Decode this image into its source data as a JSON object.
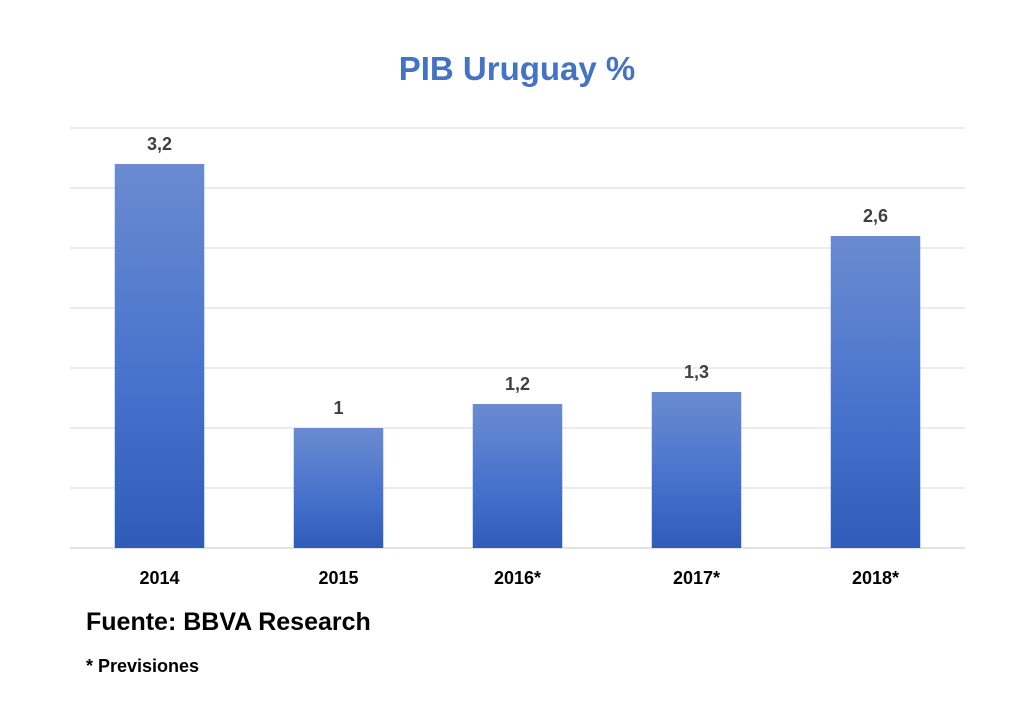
{
  "chart_data": {
    "type": "bar",
    "title": "PIB Uruguay %",
    "categories": [
      "2014",
      "2015",
      "2016*",
      "2017*",
      "2018*"
    ],
    "values": [
      3.2,
      1.0,
      1.2,
      1.3,
      2.6
    ],
    "data_labels": [
      "3,2",
      "1",
      "1,2",
      "1,3",
      "2,6"
    ],
    "xlabel": "",
    "ylabel": "",
    "ylim": [
      0,
      3.5
    ],
    "grid": true,
    "bar_color": "#4472c4"
  },
  "footer": {
    "source": "Fuente: BBVA Research",
    "note": "* Previsiones"
  }
}
